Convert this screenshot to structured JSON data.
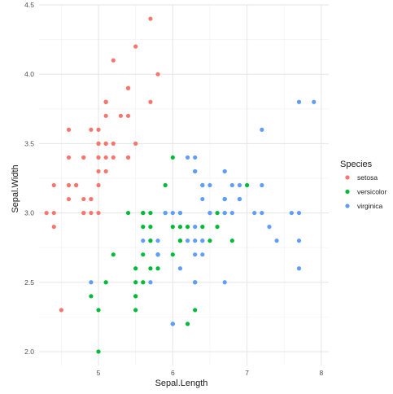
{
  "chart_data": {
    "type": "scatter",
    "xlabel": "Sepal.Length",
    "ylabel": "Sepal.Width",
    "xlim": [
      4.2,
      8.1
    ],
    "ylim": [
      1.9,
      4.5
    ],
    "x_ticks": [
      5,
      6,
      7,
      8
    ],
    "y_ticks": [
      2.0,
      2.5,
      3.0,
      3.5,
      4.0,
      4.5
    ],
    "x_tick_labels": [
      "5",
      "6",
      "7",
      "8"
    ],
    "y_tick_labels": [
      "2.0",
      "2.5",
      "3.0",
      "3.5",
      "4.0",
      "4.5"
    ],
    "grid": true,
    "legend": {
      "title": "Species",
      "position": "right"
    },
    "series": [
      {
        "name": "setosa",
        "color": "#F8766D",
        "points": [
          [
            5.1,
            3.5
          ],
          [
            4.9,
            3.0
          ],
          [
            4.7,
            3.2
          ],
          [
            4.6,
            3.1
          ],
          [
            5.0,
            3.6
          ],
          [
            5.4,
            3.9
          ],
          [
            4.6,
            3.4
          ],
          [
            5.0,
            3.4
          ],
          [
            4.4,
            2.9
          ],
          [
            4.9,
            3.1
          ],
          [
            5.4,
            3.7
          ],
          [
            4.8,
            3.4
          ],
          [
            4.8,
            3.0
          ],
          [
            4.3,
            3.0
          ],
          [
            5.8,
            4.0
          ],
          [
            5.7,
            4.4
          ],
          [
            5.4,
            3.9
          ],
          [
            5.1,
            3.5
          ],
          [
            5.7,
            3.8
          ],
          [
            5.1,
            3.8
          ],
          [
            5.4,
            3.4
          ],
          [
            5.1,
            3.7
          ],
          [
            4.6,
            3.6
          ],
          [
            5.1,
            3.3
          ],
          [
            4.8,
            3.4
          ],
          [
            5.0,
            3.0
          ],
          [
            5.0,
            3.4
          ],
          [
            5.2,
            3.5
          ],
          [
            5.2,
            3.4
          ],
          [
            4.7,
            3.2
          ],
          [
            4.8,
            3.1
          ],
          [
            5.4,
            3.4
          ],
          [
            5.2,
            4.1
          ],
          [
            5.5,
            4.2
          ],
          [
            4.9,
            3.1
          ],
          [
            5.0,
            3.2
          ],
          [
            5.5,
            3.5
          ],
          [
            4.9,
            3.6
          ],
          [
            4.4,
            3.0
          ],
          [
            5.1,
            3.4
          ],
          [
            5.0,
            3.5
          ],
          [
            4.5,
            2.3
          ],
          [
            4.4,
            3.2
          ],
          [
            5.0,
            3.5
          ],
          [
            5.1,
            3.8
          ],
          [
            4.8,
            3.0
          ],
          [
            5.1,
            3.8
          ],
          [
            4.6,
            3.2
          ],
          [
            5.3,
            3.7
          ],
          [
            5.0,
            3.3
          ]
        ]
      },
      {
        "name": "versicolor",
        "color": "#00BA38",
        "points": [
          [
            7.0,
            3.2
          ],
          [
            6.4,
            3.2
          ],
          [
            6.9,
            3.1
          ],
          [
            5.5,
            2.3
          ],
          [
            6.5,
            2.8
          ],
          [
            5.7,
            2.8
          ],
          [
            6.3,
            3.3
          ],
          [
            4.9,
            2.4
          ],
          [
            6.6,
            2.9
          ],
          [
            5.2,
            2.7
          ],
          [
            5.0,
            2.0
          ],
          [
            5.9,
            3.0
          ],
          [
            6.0,
            2.2
          ],
          [
            6.1,
            2.9
          ],
          [
            5.6,
            2.9
          ],
          [
            6.7,
            3.1
          ],
          [
            5.6,
            3.0
          ],
          [
            5.8,
            2.7
          ],
          [
            6.2,
            2.2
          ],
          [
            5.6,
            2.5
          ],
          [
            5.9,
            3.2
          ],
          [
            6.1,
            2.8
          ],
          [
            6.3,
            2.5
          ],
          [
            6.1,
            2.8
          ],
          [
            6.4,
            2.9
          ],
          [
            6.6,
            3.0
          ],
          [
            6.8,
            2.8
          ],
          [
            6.7,
            3.0
          ],
          [
            6.0,
            2.9
          ],
          [
            5.7,
            2.6
          ],
          [
            5.5,
            2.4
          ],
          [
            5.5,
            2.4
          ],
          [
            5.8,
            2.7
          ],
          [
            6.0,
            2.7
          ],
          [
            5.4,
            3.0
          ],
          [
            6.0,
            3.4
          ],
          [
            6.7,
            3.1
          ],
          [
            6.3,
            2.3
          ],
          [
            5.6,
            3.0
          ],
          [
            5.5,
            2.5
          ],
          [
            5.5,
            2.6
          ],
          [
            6.1,
            3.0
          ],
          [
            5.8,
            2.6
          ],
          [
            5.0,
            2.3
          ],
          [
            5.6,
            2.7
          ],
          [
            5.7,
            3.0
          ],
          [
            5.7,
            2.9
          ],
          [
            6.2,
            2.9
          ],
          [
            5.1,
            2.5
          ],
          [
            5.7,
            2.8
          ]
        ]
      },
      {
        "name": "virginica",
        "color": "#619CFF",
        "points": [
          [
            6.3,
            3.3
          ],
          [
            5.8,
            2.7
          ],
          [
            7.1,
            3.0
          ],
          [
            6.3,
            2.9
          ],
          [
            6.5,
            3.0
          ],
          [
            7.6,
            3.0
          ],
          [
            4.9,
            2.5
          ],
          [
            7.3,
            2.9
          ],
          [
            6.7,
            2.5
          ],
          [
            7.2,
            3.6
          ],
          [
            6.5,
            3.2
          ],
          [
            6.4,
            2.7
          ],
          [
            6.8,
            3.0
          ],
          [
            5.7,
            2.5
          ],
          [
            5.8,
            2.8
          ],
          [
            6.4,
            3.2
          ],
          [
            6.5,
            3.0
          ],
          [
            7.7,
            3.8
          ],
          [
            7.7,
            2.6
          ],
          [
            6.0,
            2.2
          ],
          [
            6.9,
            3.2
          ],
          [
            5.6,
            2.8
          ],
          [
            7.7,
            2.8
          ],
          [
            6.3,
            2.7
          ],
          [
            6.7,
            3.3
          ],
          [
            7.2,
            3.2
          ],
          [
            6.2,
            2.8
          ],
          [
            6.1,
            3.0
          ],
          [
            6.4,
            2.8
          ],
          [
            7.2,
            3.0
          ],
          [
            7.4,
            2.8
          ],
          [
            7.9,
            3.8
          ],
          [
            6.4,
            2.8
          ],
          [
            6.3,
            2.8
          ],
          [
            6.1,
            2.6
          ],
          [
            7.7,
            3.0
          ],
          [
            6.3,
            3.4
          ],
          [
            6.4,
            3.1
          ],
          [
            6.0,
            3.0
          ],
          [
            6.9,
            3.1
          ],
          [
            6.7,
            3.1
          ],
          [
            6.9,
            3.1
          ],
          [
            5.8,
            2.7
          ],
          [
            6.8,
            3.2
          ],
          [
            6.7,
            3.3
          ],
          [
            6.7,
            3.0
          ],
          [
            6.3,
            2.5
          ],
          [
            6.5,
            3.0
          ],
          [
            6.2,
            3.4
          ],
          [
            5.9,
            3.0
          ]
        ]
      }
    ]
  }
}
